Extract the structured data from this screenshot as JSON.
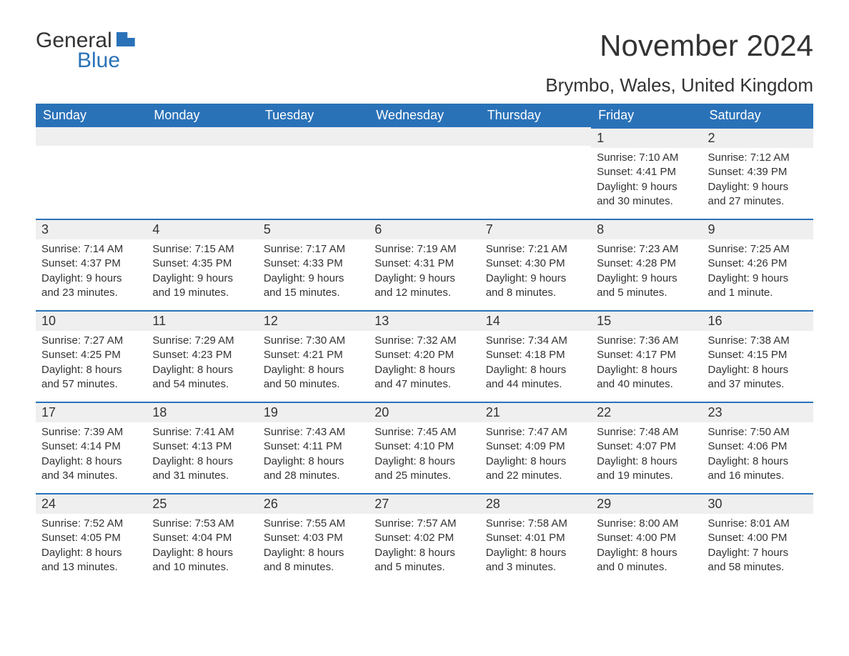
{
  "logo": {
    "word1": "General",
    "word2": "Blue"
  },
  "title": "November 2024",
  "location": "Brymbo, Wales, United Kingdom",
  "colors": {
    "header_bg": "#2a72b8",
    "header_text": "#ffffff",
    "daynum_bg": "#efefef",
    "border_top": "#2a72b8",
    "text": "#333333",
    "page_bg": "#ffffff"
  },
  "typography": {
    "title_fontsize": 42,
    "location_fontsize": 26,
    "header_fontsize": 18,
    "daynum_fontsize": 18,
    "body_fontsize": 15
  },
  "layout": {
    "cols": 7,
    "rows": 5,
    "first_weekday_index": 5
  },
  "weekdays": [
    "Sunday",
    "Monday",
    "Tuesday",
    "Wednesday",
    "Thursday",
    "Friday",
    "Saturday"
  ],
  "days": [
    {
      "n": 1,
      "sunrise": "7:10 AM",
      "sunset": "4:41 PM",
      "daylight": "9 hours and 30 minutes."
    },
    {
      "n": 2,
      "sunrise": "7:12 AM",
      "sunset": "4:39 PM",
      "daylight": "9 hours and 27 minutes."
    },
    {
      "n": 3,
      "sunrise": "7:14 AM",
      "sunset": "4:37 PM",
      "daylight": "9 hours and 23 minutes."
    },
    {
      "n": 4,
      "sunrise": "7:15 AM",
      "sunset": "4:35 PM",
      "daylight": "9 hours and 19 minutes."
    },
    {
      "n": 5,
      "sunrise": "7:17 AM",
      "sunset": "4:33 PM",
      "daylight": "9 hours and 15 minutes."
    },
    {
      "n": 6,
      "sunrise": "7:19 AM",
      "sunset": "4:31 PM",
      "daylight": "9 hours and 12 minutes."
    },
    {
      "n": 7,
      "sunrise": "7:21 AM",
      "sunset": "4:30 PM",
      "daylight": "9 hours and 8 minutes."
    },
    {
      "n": 8,
      "sunrise": "7:23 AM",
      "sunset": "4:28 PM",
      "daylight": "9 hours and 5 minutes."
    },
    {
      "n": 9,
      "sunrise": "7:25 AM",
      "sunset": "4:26 PM",
      "daylight": "9 hours and 1 minute."
    },
    {
      "n": 10,
      "sunrise": "7:27 AM",
      "sunset": "4:25 PM",
      "daylight": "8 hours and 57 minutes."
    },
    {
      "n": 11,
      "sunrise": "7:29 AM",
      "sunset": "4:23 PM",
      "daylight": "8 hours and 54 minutes."
    },
    {
      "n": 12,
      "sunrise": "7:30 AM",
      "sunset": "4:21 PM",
      "daylight": "8 hours and 50 minutes."
    },
    {
      "n": 13,
      "sunrise": "7:32 AM",
      "sunset": "4:20 PM",
      "daylight": "8 hours and 47 minutes."
    },
    {
      "n": 14,
      "sunrise": "7:34 AM",
      "sunset": "4:18 PM",
      "daylight": "8 hours and 44 minutes."
    },
    {
      "n": 15,
      "sunrise": "7:36 AM",
      "sunset": "4:17 PM",
      "daylight": "8 hours and 40 minutes."
    },
    {
      "n": 16,
      "sunrise": "7:38 AM",
      "sunset": "4:15 PM",
      "daylight": "8 hours and 37 minutes."
    },
    {
      "n": 17,
      "sunrise": "7:39 AM",
      "sunset": "4:14 PM",
      "daylight": "8 hours and 34 minutes."
    },
    {
      "n": 18,
      "sunrise": "7:41 AM",
      "sunset": "4:13 PM",
      "daylight": "8 hours and 31 minutes."
    },
    {
      "n": 19,
      "sunrise": "7:43 AM",
      "sunset": "4:11 PM",
      "daylight": "8 hours and 28 minutes."
    },
    {
      "n": 20,
      "sunrise": "7:45 AM",
      "sunset": "4:10 PM",
      "daylight": "8 hours and 25 minutes."
    },
    {
      "n": 21,
      "sunrise": "7:47 AM",
      "sunset": "4:09 PM",
      "daylight": "8 hours and 22 minutes."
    },
    {
      "n": 22,
      "sunrise": "7:48 AM",
      "sunset": "4:07 PM",
      "daylight": "8 hours and 19 minutes."
    },
    {
      "n": 23,
      "sunrise": "7:50 AM",
      "sunset": "4:06 PM",
      "daylight": "8 hours and 16 minutes."
    },
    {
      "n": 24,
      "sunrise": "7:52 AM",
      "sunset": "4:05 PM",
      "daylight": "8 hours and 13 minutes."
    },
    {
      "n": 25,
      "sunrise": "7:53 AM",
      "sunset": "4:04 PM",
      "daylight": "8 hours and 10 minutes."
    },
    {
      "n": 26,
      "sunrise": "7:55 AM",
      "sunset": "4:03 PM",
      "daylight": "8 hours and 8 minutes."
    },
    {
      "n": 27,
      "sunrise": "7:57 AM",
      "sunset": "4:02 PM",
      "daylight": "8 hours and 5 minutes."
    },
    {
      "n": 28,
      "sunrise": "7:58 AM",
      "sunset": "4:01 PM",
      "daylight": "8 hours and 3 minutes."
    },
    {
      "n": 29,
      "sunrise": "8:00 AM",
      "sunset": "4:00 PM",
      "daylight": "8 hours and 0 minutes."
    },
    {
      "n": 30,
      "sunrise": "8:01 AM",
      "sunset": "4:00 PM",
      "daylight": "7 hours and 58 minutes."
    }
  ],
  "labels": {
    "sunrise": "Sunrise:",
    "sunset": "Sunset:",
    "daylight": "Daylight:"
  }
}
